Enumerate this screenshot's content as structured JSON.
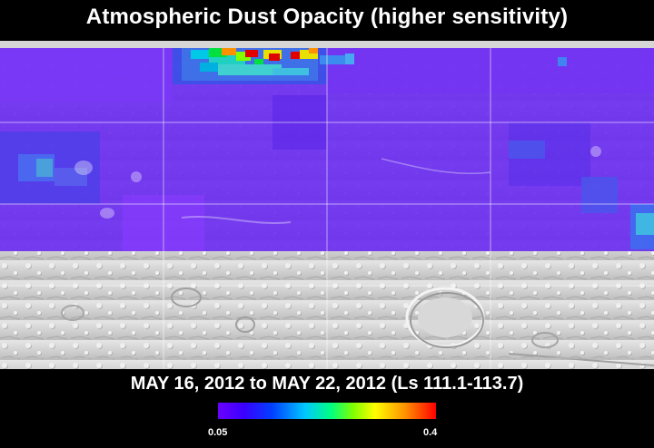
{
  "title": "Atmospheric Dust Opacity (higher sensitivity)",
  "date_range": "MAY 16, 2012 to MAY 22, 2012 (Ls 111.1-113.7)",
  "colorbar": {
    "min_label": "0.05",
    "max_label": "0.4",
    "min": 0.05,
    "max": 0.4,
    "stops": [
      "#6a00ff",
      "#3a00ff",
      "#0040ff",
      "#00c8ff",
      "#00ff80",
      "#80ff00",
      "#ffff00",
      "#ff9000",
      "#ff0000"
    ]
  },
  "map": {
    "base_color": "#cfcfcf",
    "overlay_colors": {
      "background_violet": "#6a2cf0",
      "bright_violet": "#8a3cff",
      "blue": "#3c50e6",
      "cyan": "#00c8e6",
      "green": "#00e040",
      "yellow": "#e8e000",
      "orange": "#ff9000",
      "red": "#e00000"
    },
    "gridline_color": "#ffffff"
  }
}
